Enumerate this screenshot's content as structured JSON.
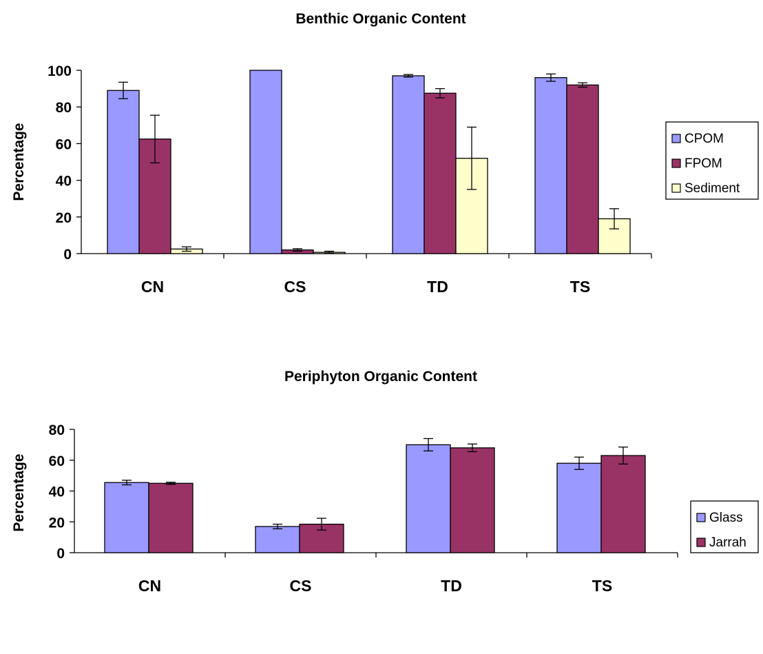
{
  "colors": {
    "CPOM": "#9999ff",
    "FPOM": "#993366",
    "Sediment": "#ffffcc",
    "Glass": "#9999ff",
    "Jarrah": "#993366"
  },
  "chart_data": [
    {
      "type": "bar",
      "title": "Benthic Organic Content",
      "xlabel": "",
      "ylabel": "Percentage",
      "categories": [
        "CN",
        "CS",
        "TD",
        "TS"
      ],
      "ylim": [
        0,
        100
      ],
      "yticks": [
        0,
        20,
        40,
        60,
        80,
        100
      ],
      "grid": false,
      "legend_position": "right",
      "series": [
        {
          "name": "CPOM",
          "values": [
            89,
            100,
            97,
            96
          ],
          "errors": [
            4.5,
            0,
            0.7,
            2
          ]
        },
        {
          "name": "FPOM",
          "values": [
            62.5,
            2,
            87.5,
            92
          ],
          "errors": [
            13,
            0.7,
            2.5,
            1.2
          ]
        },
        {
          "name": "Sediment",
          "values": [
            2.5,
            0.7,
            52,
            19
          ],
          "errors": [
            1.2,
            0.6,
            17,
            5.5
          ]
        }
      ]
    },
    {
      "type": "bar",
      "title": "Periphyton Organic Content",
      "xlabel": "",
      "ylabel": "Percentage",
      "categories": [
        "CN",
        "CS",
        "TD",
        "TS"
      ],
      "ylim": [
        0,
        80
      ],
      "yticks": [
        0,
        20,
        40,
        60,
        80
      ],
      "grid": false,
      "legend_position": "right",
      "series": [
        {
          "name": "Glass",
          "values": [
            45.5,
            17,
            70,
            58
          ],
          "errors": [
            1.5,
            1.5,
            4,
            4
          ]
        },
        {
          "name": "Jarrah",
          "values": [
            45,
            18.5,
            68,
            63
          ],
          "errors": [
            0.7,
            3.8,
            2.5,
            5.5
          ]
        }
      ]
    }
  ]
}
